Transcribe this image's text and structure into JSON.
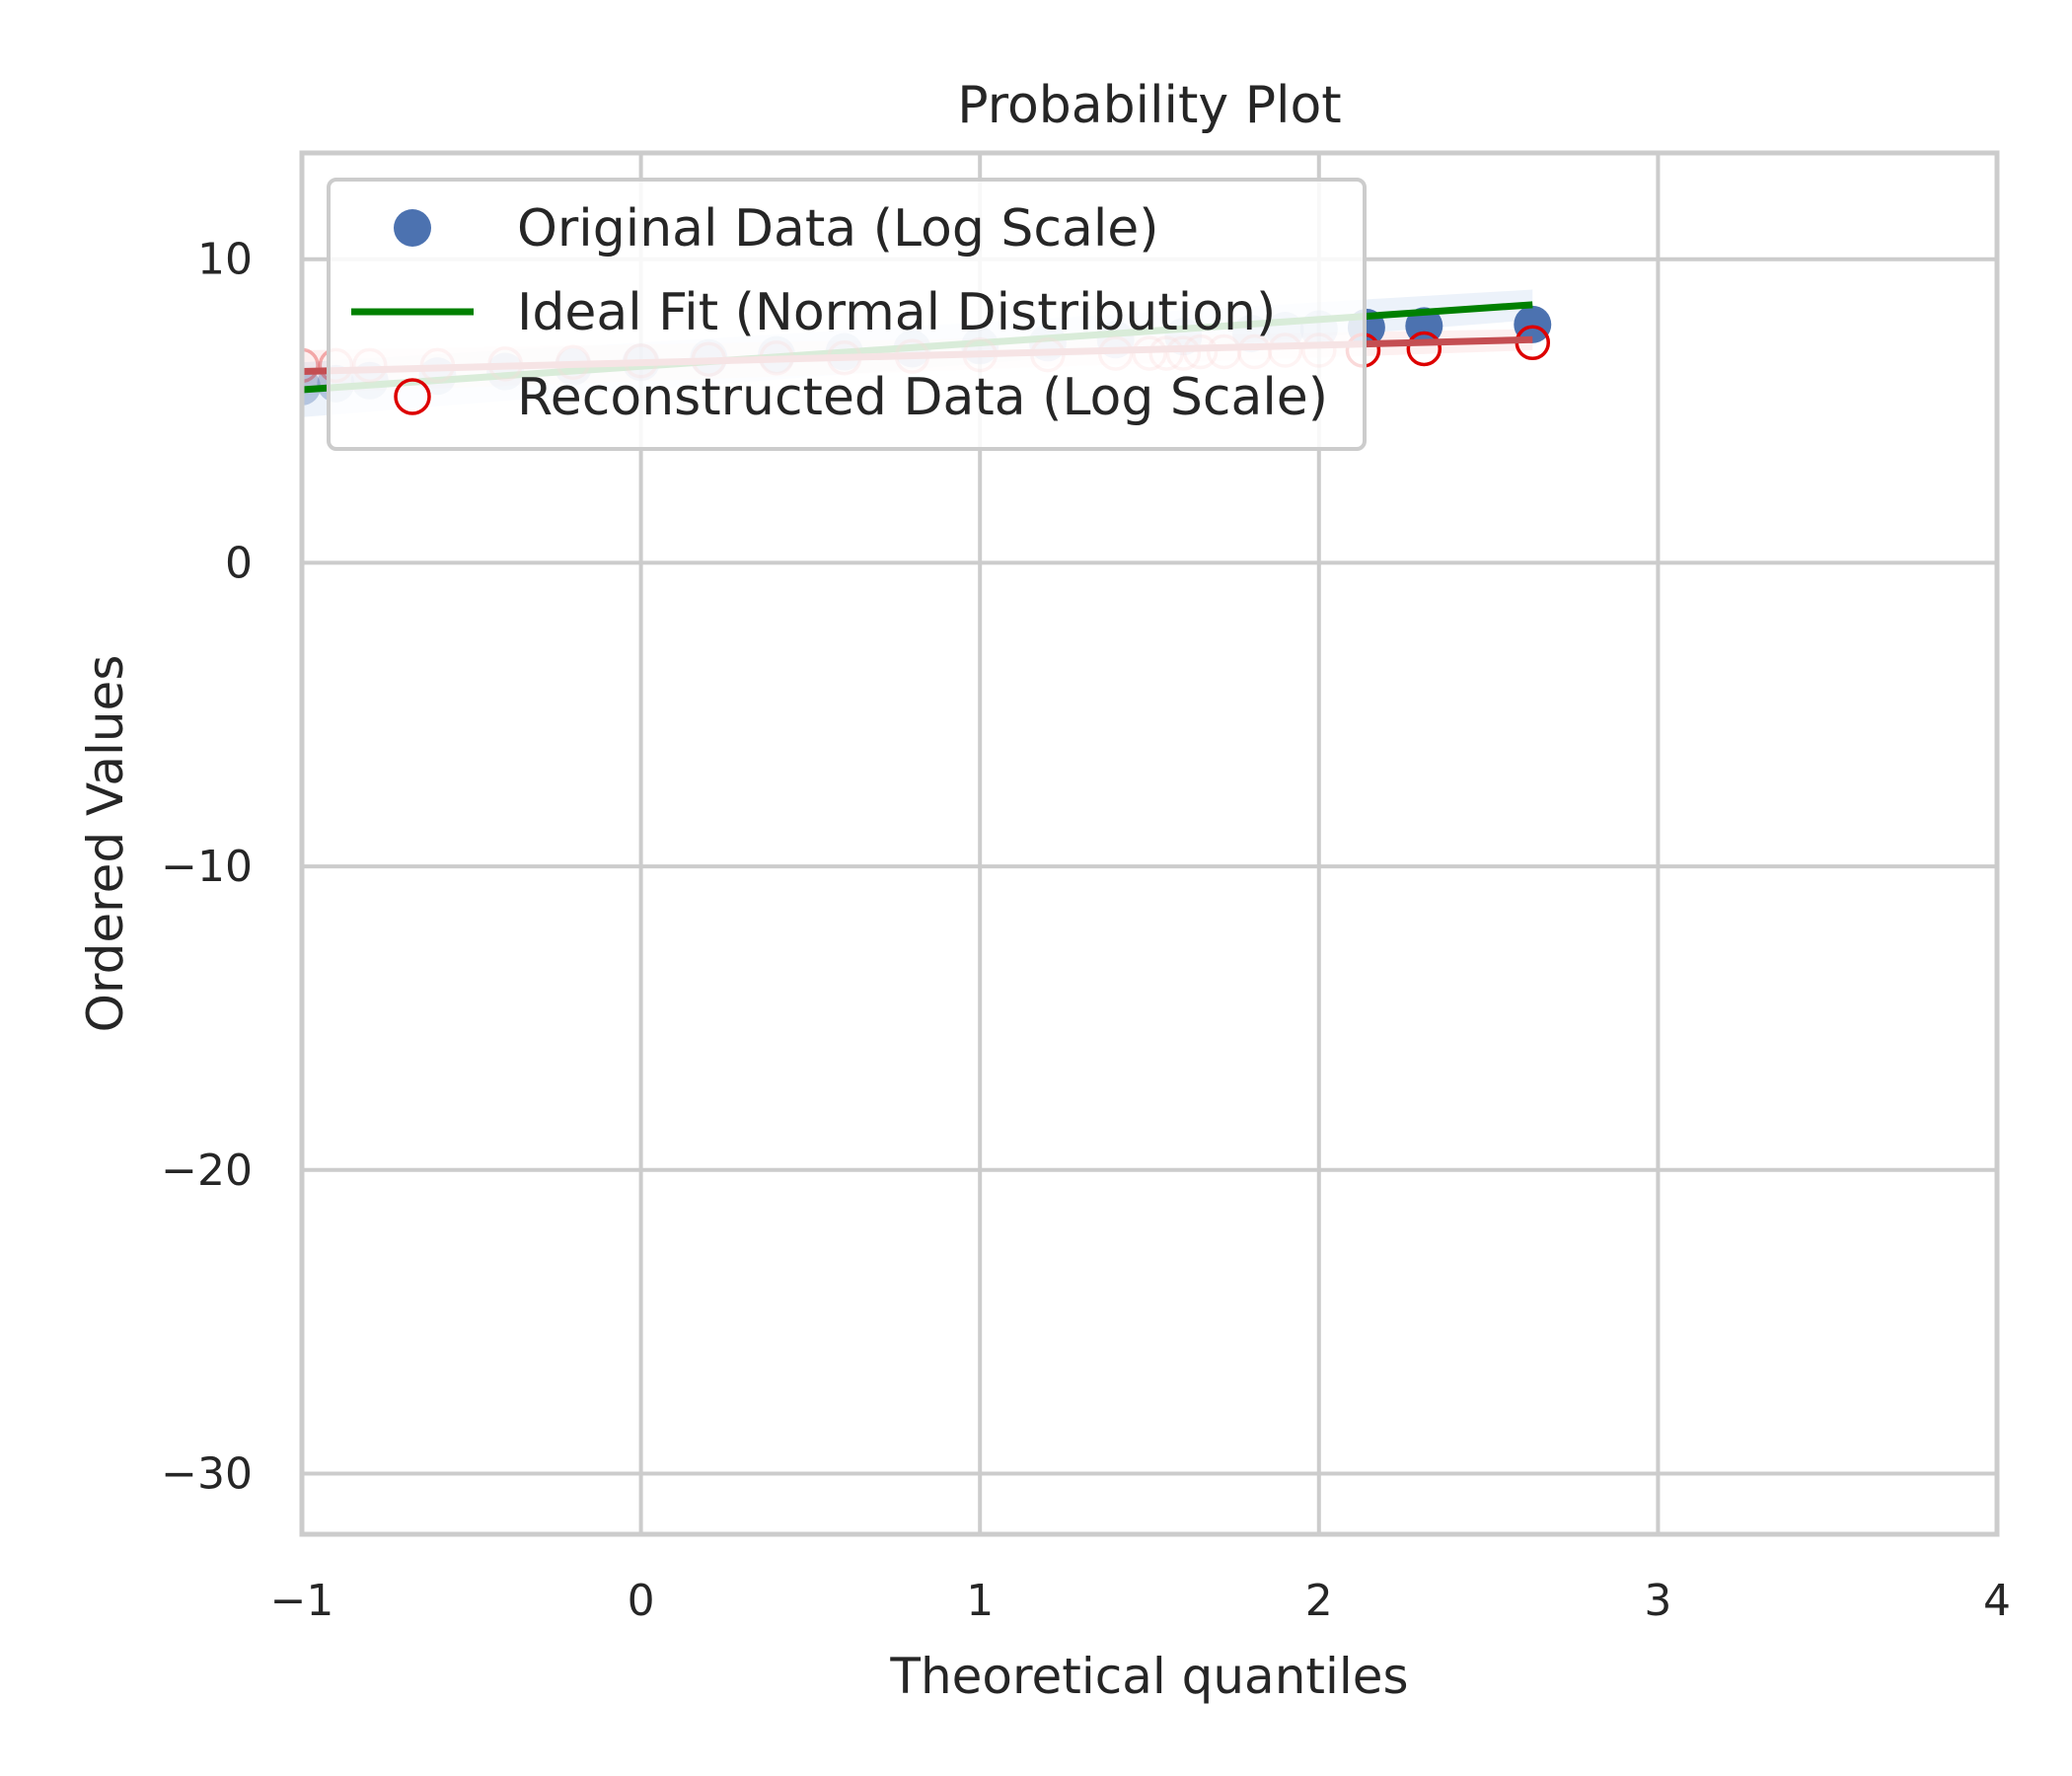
{
  "chart_data": {
    "type": "scatter",
    "title": "Probability Plot",
    "xlabel": "Theoretical quantiles",
    "ylabel": "Ordered Values",
    "xlim": [
      -1,
      4
    ],
    "ylim": [
      -32,
      13.5
    ],
    "xticks": [
      -1,
      0,
      1,
      2,
      3,
      4
    ],
    "xtick_labels": [
      "−1",
      "0",
      "1",
      "2",
      "3",
      "4"
    ],
    "yticks": [
      -30,
      -20,
      -10,
      0,
      10
    ],
    "ytick_labels": [
      "−30",
      "−20",
      "−10",
      "0",
      "10"
    ],
    "grid": true,
    "legend_position": "upper-left",
    "colors": {
      "original": "#4c72b0",
      "ideal_fit": "#008000",
      "reconstructed": "#dd0000",
      "reconstructed_fit": "#c44e52",
      "grid": "#cccccc"
    },
    "series": [
      {
        "name": "Original Data (Log Scale)",
        "kind": "markers-filled",
        "x": [
          -1.0,
          -0.9,
          -0.8,
          -0.6,
          -0.4,
          -0.2,
          0.0,
          0.2,
          0.4,
          0.6,
          0.8,
          1.0,
          1.2,
          1.4,
          1.6,
          1.8,
          1.9,
          2.0,
          2.14,
          2.31,
          2.63
        ],
        "y": [
          5.8,
          5.9,
          6.0,
          6.15,
          6.3,
          6.45,
          6.6,
          6.75,
          6.85,
          6.95,
          7.05,
          7.15,
          7.25,
          7.35,
          7.45,
          7.55,
          7.65,
          7.7,
          7.75,
          7.8,
          7.85
        ]
      },
      {
        "name": "Ideal Fit (Normal Distribution)",
        "kind": "line",
        "x": [
          -1.0,
          2.63
        ],
        "y": [
          5.7,
          8.5
        ]
      },
      {
        "name": "Reconstructed Data (Log Scale)",
        "kind": "markers-open",
        "x": [
          -1.0,
          -0.9,
          -0.8,
          -0.6,
          -0.4,
          -0.2,
          0.0,
          0.2,
          0.4,
          0.6,
          0.8,
          1.0,
          1.2,
          1.4,
          1.5,
          1.55,
          1.6,
          1.65,
          1.72,
          1.81,
          1.9,
          2.0,
          2.13,
          2.31,
          2.63
        ],
        "y": [
          6.5,
          6.5,
          6.5,
          6.5,
          6.55,
          6.6,
          6.65,
          6.7,
          6.75,
          6.75,
          6.8,
          6.85,
          6.85,
          6.9,
          6.9,
          6.9,
          6.9,
          6.95,
          6.95,
          6.95,
          7.0,
          7.0,
          7.0,
          7.05,
          7.25
        ]
      },
      {
        "kind": "line",
        "x": [
          -1.0,
          2.63
        ],
        "y": [
          6.3,
          7.35
        ]
      }
    ]
  }
}
